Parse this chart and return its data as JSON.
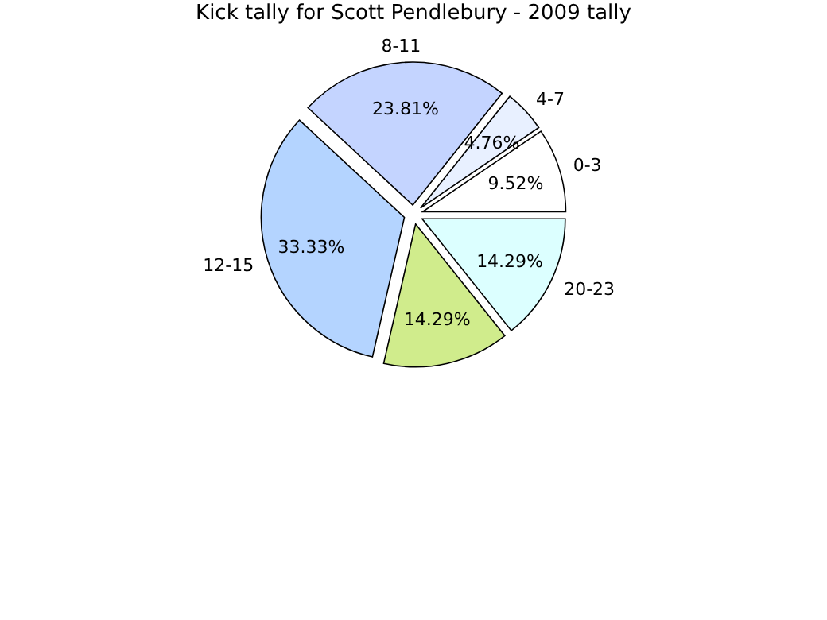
{
  "chart_data": {
    "type": "pie",
    "title": "Kick tally for Scott Pendlebury - 2009 tally",
    "categories": [
      "0-3",
      "4-7",
      "8-11",
      "12-15",
      null,
      "20-23"
    ],
    "values": [
      9.52,
      4.76,
      23.81,
      33.33,
      14.29,
      14.29
    ],
    "value_labels": [
      "9.52%",
      "4.76%",
      "23.81%",
      "33.33%",
      "14.29%",
      "14.29%"
    ],
    "colors": [
      "#ffffff",
      "#e8f0ff",
      "#c4d4ff",
      "#b4d4ff",
      "#d0ec8c",
      "#dcffff"
    ]
  }
}
